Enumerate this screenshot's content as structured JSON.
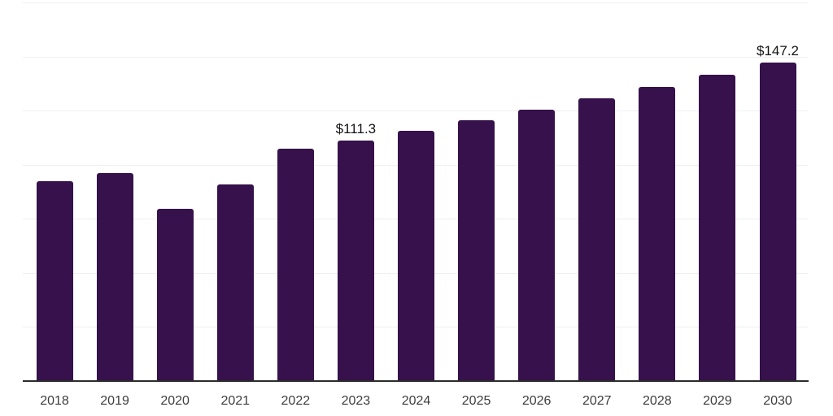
{
  "chart_data": {
    "type": "bar",
    "title": "",
    "xlabel": "",
    "ylabel": "",
    "categories": [
      "2018",
      "2019",
      "2020",
      "2021",
      "2022",
      "2023",
      "2024",
      "2025",
      "2026",
      "2027",
      "2028",
      "2029",
      "2030"
    ],
    "values": [
      92.5,
      96.0,
      79.6,
      90.8,
      107.5,
      111.3,
      115.8,
      120.5,
      125.4,
      130.5,
      135.8,
      141.4,
      147.2
    ],
    "data_labels": [
      {
        "category": "2023",
        "text": "$111.3"
      },
      {
        "category": "2030",
        "text": "$147.2"
      }
    ],
    "ylim": [
      0,
      175
    ],
    "grid": true,
    "grid_step": 25,
    "legend": "none",
    "colors": {
      "bar": "#36114B",
      "axis": "#2b2b2b",
      "gridline": "#f1eff2",
      "tick_label": "#3d3d3d",
      "data_label": "#131313",
      "background": "#ffffff"
    }
  }
}
